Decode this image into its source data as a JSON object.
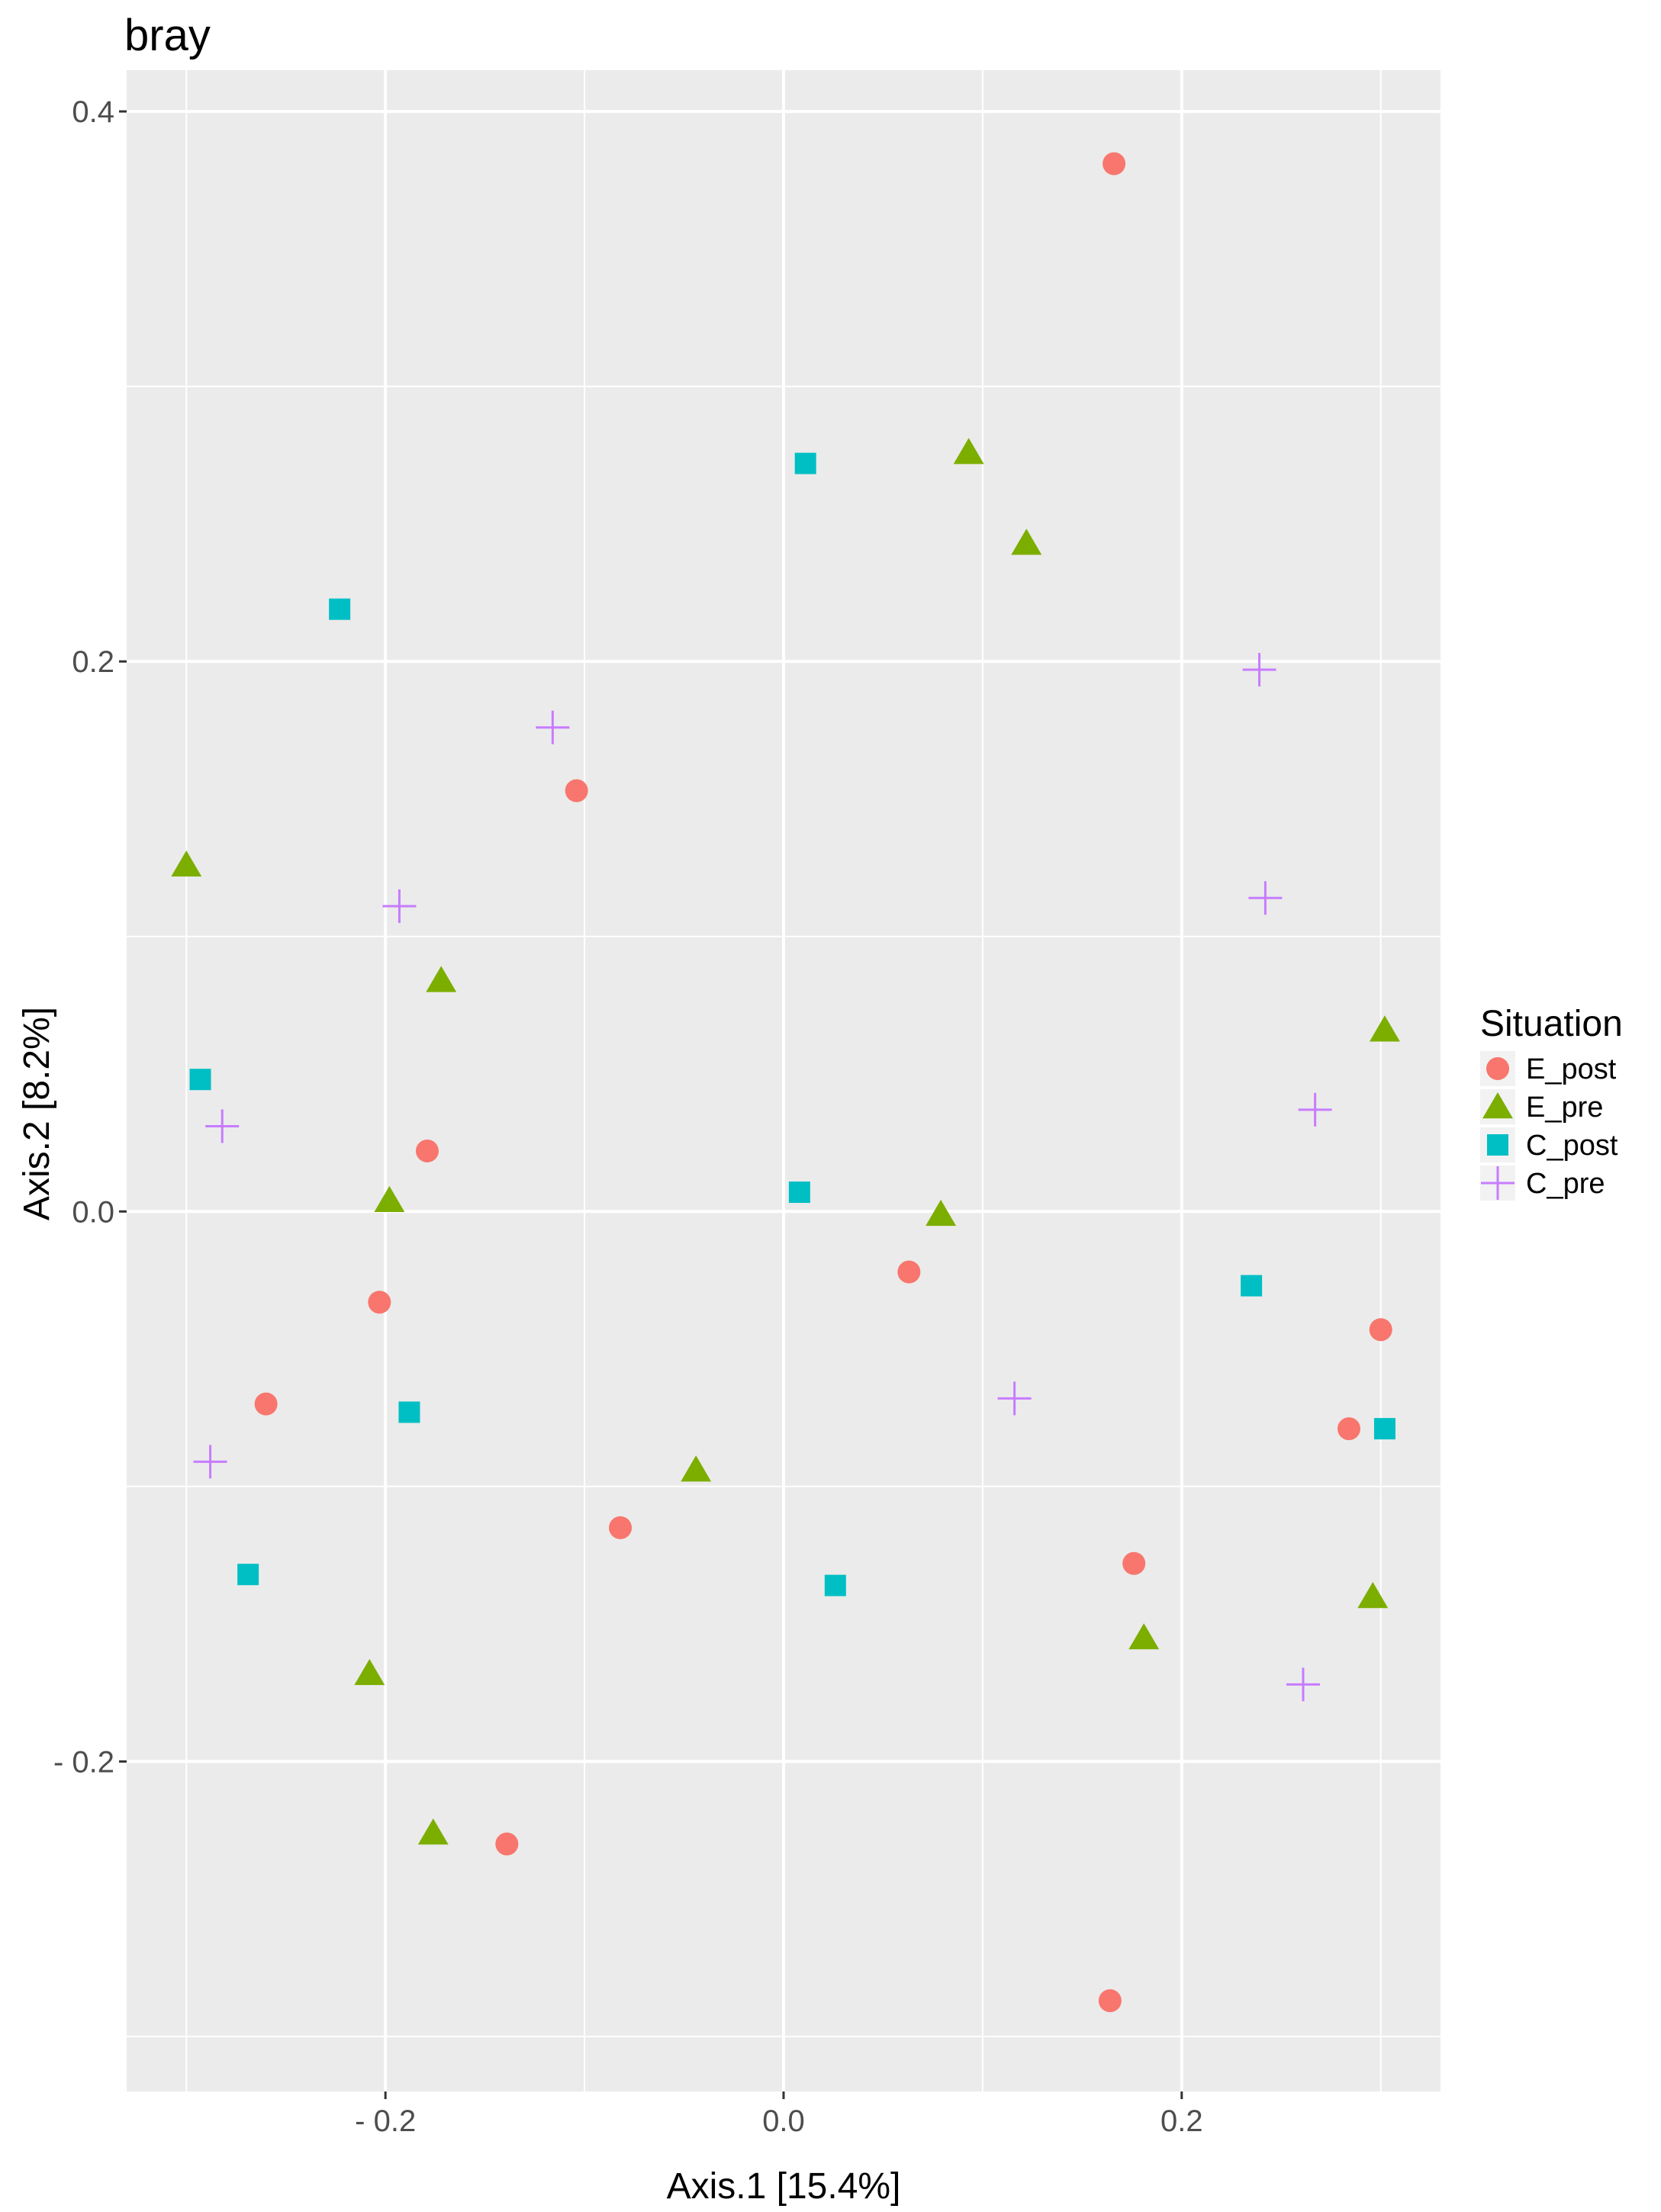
{
  "chart_data": {
    "type": "scatter",
    "title": "bray",
    "xlabel": "Axis.1   [15.4%]",
    "ylabel": "Axis.2   [8.2%]",
    "xlim": [
      -0.33,
      0.33
    ],
    "ylim": [
      -0.32,
      0.415
    ],
    "x_ticks": [
      {
        "value": -0.2,
        "label": "- 0.2"
      },
      {
        "value": 0.0,
        "label": "0.0"
      },
      {
        "value": 0.2,
        "label": "0.2"
      }
    ],
    "y_ticks": [
      {
        "value": -0.2,
        "label": "- 0.2"
      },
      {
        "value": 0.0,
        "label": "0.0"
      },
      {
        "value": 0.2,
        "label": "0.2"
      },
      {
        "value": 0.4,
        "label": "0.4"
      }
    ],
    "grid": true,
    "panel_background": "#ebebeb",
    "legend": {
      "title": "Situation",
      "placement": "right"
    },
    "series": [
      {
        "name": "E_post",
        "shape": "circle",
        "color": "#f8766d",
        "points": [
          [
            0.166,
            0.381
          ],
          [
            -0.104,
            0.153
          ],
          [
            -0.179,
            0.022
          ],
          [
            -0.203,
            -0.033
          ],
          [
            0.063,
            -0.022
          ],
          [
            0.3,
            -0.043
          ],
          [
            0.284,
            -0.079
          ],
          [
            -0.26,
            -0.07
          ],
          [
            -0.082,
            -0.115
          ],
          [
            0.176,
            -0.128
          ],
          [
            -0.139,
            -0.23
          ],
          [
            0.164,
            -0.287
          ]
        ]
      },
      {
        "name": "E_pre",
        "shape": "triangle",
        "color": "#7cae00",
        "points": [
          [
            0.093,
            0.276
          ],
          [
            0.122,
            0.243
          ],
          [
            -0.3,
            0.126
          ],
          [
            -0.172,
            0.084
          ],
          [
            0.302,
            0.066
          ],
          [
            -0.198,
            0.004
          ],
          [
            0.079,
            -0.001
          ],
          [
            -0.044,
            -0.094
          ],
          [
            0.296,
            -0.14
          ],
          [
            0.181,
            -0.155
          ],
          [
            -0.208,
            -0.168
          ],
          [
            -0.176,
            -0.226
          ]
        ]
      },
      {
        "name": "C_post",
        "shape": "square",
        "color": "#00bfc4",
        "points": [
          [
            0.011,
            0.272
          ],
          [
            -0.223,
            0.219
          ],
          [
            -0.293,
            0.048
          ],
          [
            0.008,
            0.007
          ],
          [
            0.235,
            -0.027
          ],
          [
            0.302,
            -0.079
          ],
          [
            -0.188,
            -0.073
          ],
          [
            -0.269,
            -0.132
          ],
          [
            0.026,
            -0.136
          ]
        ]
      },
      {
        "name": "C_pre",
        "shape": "cross",
        "color": "#c77cff",
        "points": [
          [
            0.239,
            0.197
          ],
          [
            -0.116,
            0.176
          ],
          [
            0.242,
            0.114
          ],
          [
            -0.193,
            0.111
          ],
          [
            0.267,
            0.037
          ],
          [
            -0.282,
            0.031
          ],
          [
            0.116,
            -0.068
          ],
          [
            -0.288,
            -0.091
          ],
          [
            0.261,
            -0.172
          ]
        ]
      }
    ]
  }
}
